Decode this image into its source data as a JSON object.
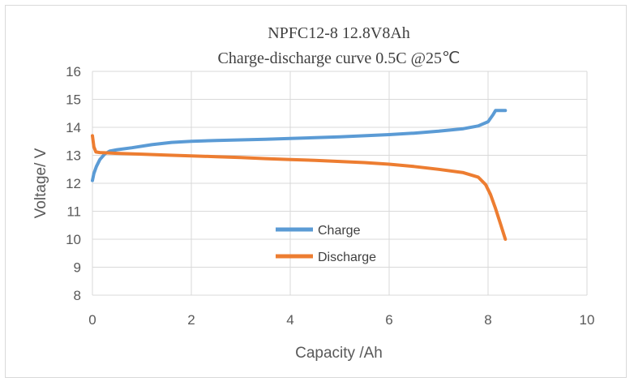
{
  "chart_data": {
    "type": "line",
    "title": "NPFC12-8  12.8V8Ah",
    "subtitle": "Charge-discharge curve   0.5C @25℃",
    "xlabel": "Capacity /Ah",
    "ylabel": "Voltage/ V",
    "xlim": [
      0,
      10
    ],
    "ylim": [
      8,
      16
    ],
    "xticks": [
      "0",
      "2",
      "4",
      "6",
      "8",
      "10"
    ],
    "yticks": [
      "8",
      "9",
      "10",
      "11",
      "12",
      "13",
      "14",
      "15",
      "16"
    ],
    "grid": true,
    "legend_position": "center",
    "series": [
      {
        "name": "Charge",
        "color": "#5b9bd5",
        "points": [
          [
            0.0,
            12.1
          ],
          [
            0.03,
            12.35
          ],
          [
            0.08,
            12.6
          ],
          [
            0.15,
            12.85
          ],
          [
            0.25,
            13.05
          ],
          [
            0.35,
            13.15
          ],
          [
            0.5,
            13.2
          ],
          [
            0.8,
            13.27
          ],
          [
            1.2,
            13.38
          ],
          [
            1.6,
            13.46
          ],
          [
            2.0,
            13.5
          ],
          [
            2.5,
            13.53
          ],
          [
            3.0,
            13.55
          ],
          [
            3.5,
            13.57
          ],
          [
            4.0,
            13.6
          ],
          [
            4.5,
            13.63
          ],
          [
            5.0,
            13.66
          ],
          [
            5.5,
            13.7
          ],
          [
            6.0,
            13.74
          ],
          [
            6.5,
            13.79
          ],
          [
            7.0,
            13.86
          ],
          [
            7.5,
            13.95
          ],
          [
            7.8,
            14.05
          ],
          [
            8.0,
            14.2
          ],
          [
            8.1,
            14.45
          ],
          [
            8.15,
            14.6
          ],
          [
            8.35,
            14.6
          ]
        ]
      },
      {
        "name": "Discharge",
        "color": "#ed7d31",
        "points": [
          [
            0.0,
            13.7
          ],
          [
            0.03,
            13.3
          ],
          [
            0.07,
            13.12
          ],
          [
            0.15,
            13.1
          ],
          [
            0.5,
            13.07
          ],
          [
            1.0,
            13.04
          ],
          [
            1.5,
            13.01
          ],
          [
            2.0,
            12.98
          ],
          [
            2.5,
            12.95
          ],
          [
            3.0,
            12.92
          ],
          [
            3.5,
            12.88
          ],
          [
            4.0,
            12.85
          ],
          [
            4.5,
            12.82
          ],
          [
            5.0,
            12.78
          ],
          [
            5.5,
            12.74
          ],
          [
            6.0,
            12.68
          ],
          [
            6.5,
            12.6
          ],
          [
            7.0,
            12.5
          ],
          [
            7.5,
            12.38
          ],
          [
            7.8,
            12.22
          ],
          [
            7.95,
            11.95
          ],
          [
            8.05,
            11.6
          ],
          [
            8.15,
            11.1
          ],
          [
            8.25,
            10.55
          ],
          [
            8.35,
            10.0
          ]
        ]
      }
    ]
  }
}
